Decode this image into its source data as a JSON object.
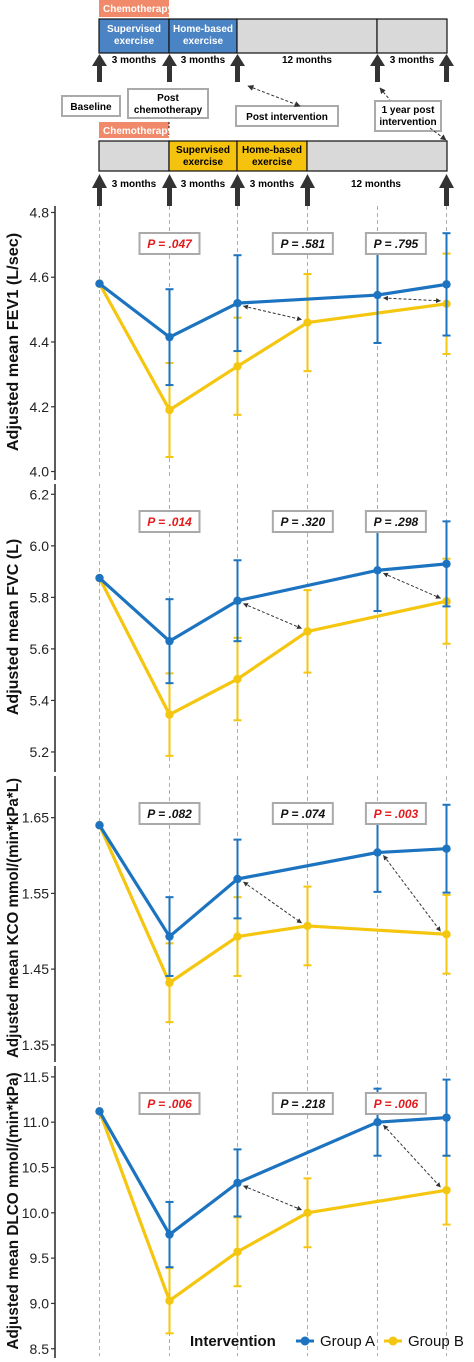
{
  "colors": {
    "group_a": "#1c73bf",
    "group_b": "#f5c60f",
    "chemo": "#f08a6a",
    "arm_a_bar": "#4a84c4",
    "arm_b_bar": "#f5c20e",
    "bar_grey": "#d9d9d9",
    "p_significant": "#e31a1c",
    "p_ns": "#111111",
    "arrow": "#333333",
    "guide": "#999999"
  },
  "timeline": {
    "top_chemo": "Chemotherapy",
    "top_supervised": "Supervised exercise",
    "top_home": "Home-based exercise",
    "top_12m": "12 months",
    "top_3m": "3 months",
    "bottom_chemo": "Chemotherapy",
    "bottom_supervised": "Supervised exercise",
    "bottom_home": "Home-based exercise",
    "bottom_12m": "12 months",
    "under_top": [
      "3 months",
      "3 months",
      "12 months",
      "3 months"
    ],
    "under_bottom": [
      "3 months",
      "3 months",
      "3 months",
      "12 months"
    ],
    "milestones": {
      "baseline": "Baseline",
      "post_chemo": "Post chemotherapy",
      "post_intervention": "Post intervention",
      "one_year_post": "1 year post intervention"
    }
  },
  "legend": {
    "title": "Intervention",
    "group_a": "Group A",
    "group_b": "Group B"
  },
  "chart_data": [
    {
      "type": "line",
      "ylabel": "Adjusted mean FEV1 (L/sec)",
      "ylim": [
        3.98,
        4.82
      ],
      "yticks": [
        "4.0",
        "4.2",
        "4.4",
        "4.6",
        "4.8"
      ],
      "x": [
        0,
        3,
        6,
        9,
        18
      ],
      "series": [
        {
          "name": "Group A",
          "x": [
            0,
            3,
            6,
            15,
            18
          ],
          "values": [
            4.58,
            4.415,
            4.52,
            4.545,
            4.578
          ],
          "err": [
            0,
            0.148,
            0.148,
            0.148,
            0.158
          ]
        },
        {
          "name": "Group B",
          "x": [
            0,
            3,
            6,
            9,
            18
          ],
          "values": [
            4.58,
            4.19,
            4.325,
            4.46,
            4.518
          ],
          "err": [
            0,
            0.145,
            0.15,
            0.15,
            0.155
          ]
        }
      ],
      "pvalues": [
        {
          "at_x": 3,
          "text": "P = .047",
          "significant": true
        },
        {
          "at_x": 8.8,
          "text": "P = .581",
          "significant": false
        },
        {
          "at_x": 15.8,
          "text": "P = .795",
          "significant": false
        }
      ],
      "arrows": [
        {
          "from": {
            "x": 6,
            "y": 4.52
          },
          "to": {
            "x": 9,
            "y": 4.46
          }
        },
        {
          "from": {
            "x": 15,
            "y": 4.545
          },
          "to": {
            "x": 18,
            "y": 4.518
          }
        }
      ]
    },
    {
      "type": "line",
      "ylabel": "Adjusted mean FVC (L)",
      "ylim": [
        5.13,
        6.24
      ],
      "yticks": [
        "5.2",
        "5.4",
        "5.6",
        "5.8",
        "6.0",
        "6.2"
      ],
      "x": [
        0,
        3,
        6,
        9,
        18
      ],
      "series": [
        {
          "name": "Group A",
          "x": [
            0,
            3,
            6,
            15,
            18
          ],
          "values": [
            5.875,
            5.63,
            5.787,
            5.905,
            5.93
          ],
          "err": [
            0,
            0.163,
            0.157,
            0.158,
            0.165
          ]
        },
        {
          "name": "Group B",
          "x": [
            0,
            3,
            6,
            9,
            18
          ],
          "values": [
            5.875,
            5.345,
            5.483,
            5.668,
            5.785
          ],
          "err": [
            0,
            0.16,
            0.16,
            0.16,
            0.165
          ]
        }
      ],
      "pvalues": [
        {
          "at_x": 3,
          "text": "P = .014",
          "significant": true
        },
        {
          "at_x": 8.8,
          "text": "P = .320",
          "significant": false
        },
        {
          "at_x": 15.8,
          "text": "P = .298",
          "significant": false
        }
      ],
      "arrows": [
        {
          "from": {
            "x": 6,
            "y": 5.787
          },
          "to": {
            "x": 9,
            "y": 5.668
          }
        },
        {
          "from": {
            "x": 15,
            "y": 5.905
          },
          "to": {
            "x": 18,
            "y": 5.785
          }
        }
      ]
    },
    {
      "type": "line",
      "ylabel": "Adjusted mean KCO mmol/(min*kPa*L)",
      "ylim": [
        1.33,
        1.705
      ],
      "yticks": [
        "1.35",
        "1.45",
        "1.55",
        "1.65"
      ],
      "x": [
        0,
        3,
        6,
        9,
        18
      ],
      "series": [
        {
          "name": "Group A",
          "x": [
            0,
            3,
            6,
            15,
            18
          ],
          "values": [
            1.64,
            1.493,
            1.569,
            1.604,
            1.609
          ],
          "err": [
            0,
            0.052,
            0.052,
            0.052,
            0.058
          ]
        },
        {
          "name": "Group B",
          "x": [
            0,
            3,
            6,
            9,
            18
          ],
          "values": [
            1.64,
            1.432,
            1.493,
            1.507,
            1.496
          ],
          "err": [
            0,
            0.052,
            0.052,
            0.052,
            0.052
          ]
        }
      ],
      "pvalues": [
        {
          "at_x": 3,
          "text": "P = .082",
          "significant": false
        },
        {
          "at_x": 8.8,
          "text": "P = .074",
          "significant": false
        },
        {
          "at_x": 15.8,
          "text": "P = .003",
          "significant": true
        }
      ],
      "arrows": [
        {
          "from": {
            "x": 6,
            "y": 1.569
          },
          "to": {
            "x": 9,
            "y": 1.507
          }
        },
        {
          "from": {
            "x": 15,
            "y": 1.604
          },
          "to": {
            "x": 18,
            "y": 1.496
          }
        }
      ]
    },
    {
      "type": "line",
      "ylabel": "Adjusted mean DLCO mmol/(min*kPa)",
      "ylim": [
        8.42,
        11.62
      ],
      "yticks": [
        "8.5",
        "9.0",
        "9.5",
        "10.0",
        "10.5",
        "11.0",
        "11.5"
      ],
      "x": [
        0,
        3,
        6,
        9,
        18
      ],
      "series": [
        {
          "name": "Group A",
          "x": [
            0,
            3,
            6,
            15,
            18
          ],
          "values": [
            11.12,
            9.76,
            10.33,
            11.0,
            11.05
          ],
          "err": [
            0,
            0.36,
            0.37,
            0.37,
            0.42
          ]
        },
        {
          "name": "Group B",
          "x": [
            0,
            3,
            6,
            9,
            18
          ],
          "values": [
            11.12,
            9.03,
            9.57,
            10.0,
            10.25
          ],
          "err": [
            0,
            0.36,
            0.38,
            0.38,
            0.38
          ]
        }
      ],
      "pvalues": [
        {
          "at_x": 3,
          "text": "P = .006",
          "significant": true
        },
        {
          "at_x": 8.8,
          "text": "P = .218",
          "significant": false
        },
        {
          "at_x": 15.8,
          "text": "P = .006",
          "significant": true
        }
      ],
      "arrows": [
        {
          "from": {
            "x": 6,
            "y": 10.33
          },
          "to": {
            "x": 9,
            "y": 10.0
          }
        },
        {
          "from": {
            "x": 15,
            "y": 11.0
          },
          "to": {
            "x": 18,
            "y": 10.25
          }
        }
      ]
    }
  ]
}
